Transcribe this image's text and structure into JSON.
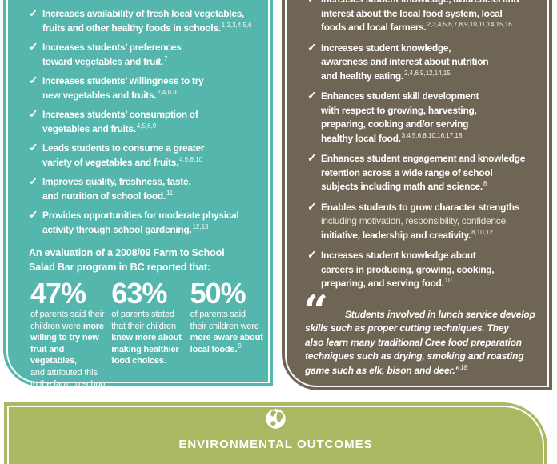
{
  "colors": {
    "teal": "#54b6ac",
    "brown": "#6e6555",
    "green": "#a9b961",
    "text_white": "#ffffff"
  },
  "icons": {
    "check": "✓"
  },
  "left_panel": {
    "items": [
      {
        "segments": [
          {
            "text": "Increases availability of fresh local vegetables,\nfruits and other healthy foods in schools."
          }
        ],
        "refs": "1,2,3,4,5,6"
      },
      {
        "segments": [
          {
            "text": "Increases students’ preferences\ntoward vegetables and fruit."
          }
        ],
        "refs": "7"
      },
      {
        "segments": [
          {
            "text": "Increases students’ willingness to try\nnew vegetables and fruits."
          }
        ],
        "refs": "2,4,8,9"
      },
      {
        "segments": [
          {
            "text": "Increases students’ consumption of\nvegetables and fruits."
          }
        ],
        "refs": "4,5,6,9"
      },
      {
        "segments": [
          {
            "text": "Leads students to consume a greater\nvariety of vegetables and fruits."
          }
        ],
        "refs": "4,5,6,10"
      },
      {
        "segments": [
          {
            "text": "Improves quality, freshness, taste,\nand nutrition of school food."
          }
        ],
        "refs": "11"
      },
      {
        "segments": [
          {
            "text": "Provides opportunities for moderate physical\nactivity through school gardening."
          }
        ],
        "refs": "12,13"
      }
    ],
    "evaluation_heading": "An evaluation of a 2008/09 Farm to School\nSalad Bar program in BC reported that:",
    "stats": [
      {
        "value": "47%",
        "desc": [
          {
            "text": "of parents said their\nchildren were ",
            "bold": false
          },
          {
            "text": "more\nwilling to try new\nfruit and vegetables,",
            "bold": true
          },
          {
            "text": "\nand attributed this\nto the farm to school\nsalad bar initiative.",
            "bold": false
          }
        ]
      },
      {
        "value": "63%",
        "desc": [
          {
            "text": "of parents stated\nthat their children\n",
            "bold": false
          },
          {
            "text": "knew more about\nmaking healthier\nfood choices",
            "bold": true
          },
          {
            "text": ".",
            "bold": false
          }
        ]
      },
      {
        "value": "50%",
        "desc": [
          {
            "text": "of parents said\ntheir children were\n",
            "bold": false
          },
          {
            "text": "more aware about\nlocal foods.",
            "bold": true
          }
        ],
        "ref": "9"
      }
    ]
  },
  "right_panel": {
    "items": [
      {
        "segments": [
          {
            "text": "Increases student knowledge, awareness and\ninterest about the local food system, local\nfoods and local farmers."
          }
        ],
        "refs": "2,3,4,5,6,7,8,9,10,11,14,15,16"
      },
      {
        "segments": [
          {
            "text": "Increases student knowledge,\nawareness and interest about nutrition\nand healthy eating."
          }
        ],
        "refs": "2,4,6,9,12,14,15"
      },
      {
        "segments": [
          {
            "text": "Enhances student skill development\nwith respect to growing, harvesting,\npreparing, cooking and/or serving\nhealthy local food."
          }
        ],
        "refs": "3,4,5,6,8,10,16,17,18"
      },
      {
        "segments": [
          {
            "text": "Enhances student engagement and knowledge\nretention across a wide range of school\nsubjects including math and science."
          }
        ],
        "refs": "8"
      },
      {
        "segments": [
          {
            "text": "Enables students to grow character strengths\n",
            "light": false
          },
          {
            "text": "including motivation, responsibility, confidence,\n",
            "light": true
          },
          {
            "text": "initiative, leadership and creativity.",
            "light": false
          }
        ],
        "refs": "8,10,12"
      },
      {
        "segments": [
          {
            "text": "Increases student knowledge about\ncareers in producing, growing, cooking,\npreparing, and serving food."
          }
        ],
        "refs": "10"
      }
    ],
    "quote": {
      "mark": "“",
      "text": "Students involved in lunch service develop\nskills such as proper cutting techniques. They\nalso learn many traditional Cree food preparation\ntechniques such as drying, smoking and roasting\ngame such as elk, bison and deer.\"",
      "ref": "18"
    }
  },
  "banner": {
    "title": "ENVIRONMENTAL OUTCOMES"
  }
}
